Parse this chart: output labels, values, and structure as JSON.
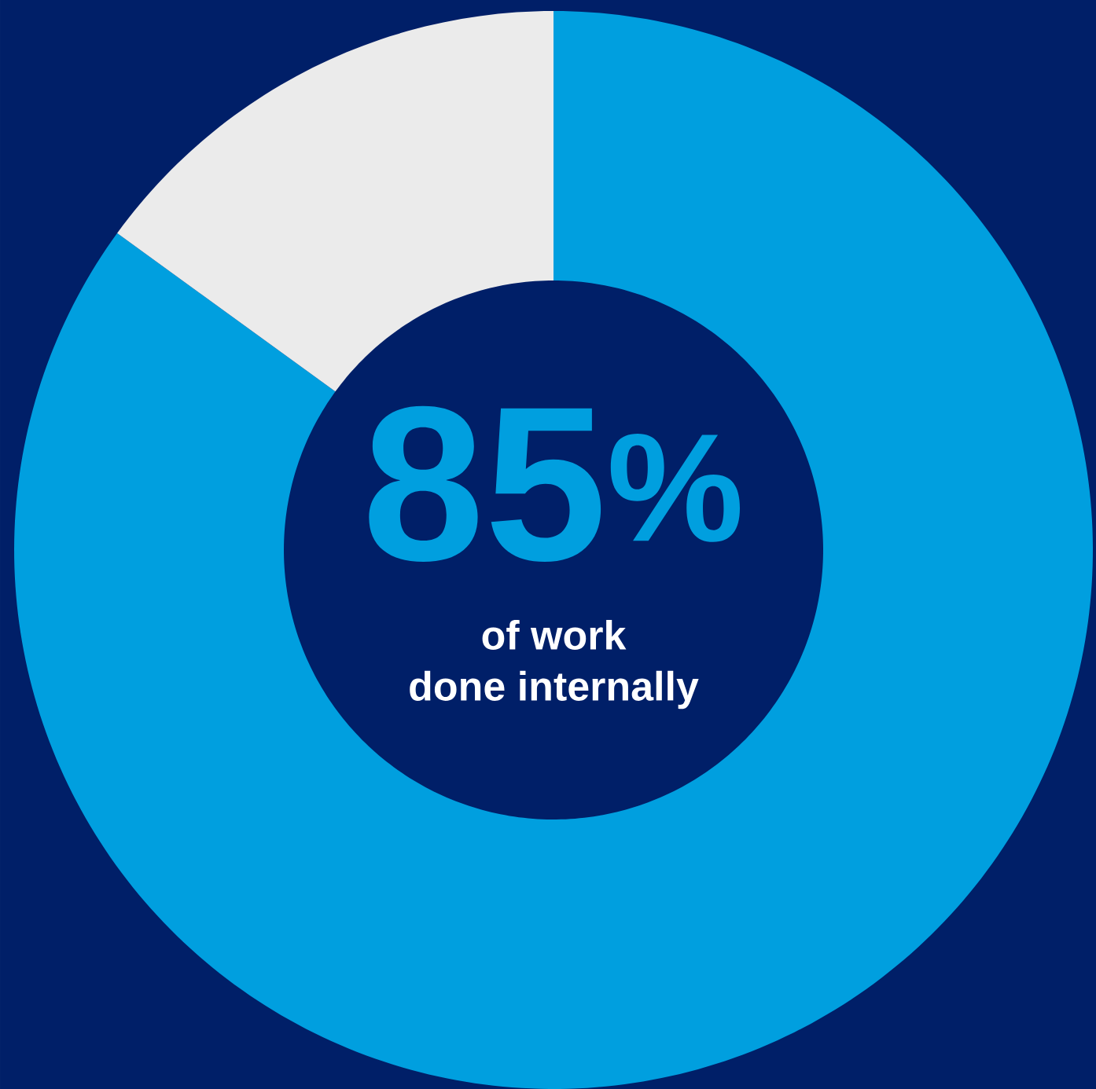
{
  "chart_data": {
    "type": "donut",
    "categories": [
      null,
      null
    ],
    "values": [
      85,
      15
    ],
    "colors": [
      "#009fdf",
      "#ebebeb"
    ],
    "annotations": [
      "85$^{%}$",
      "of work",
      "done internally"
    ]
  }
}
